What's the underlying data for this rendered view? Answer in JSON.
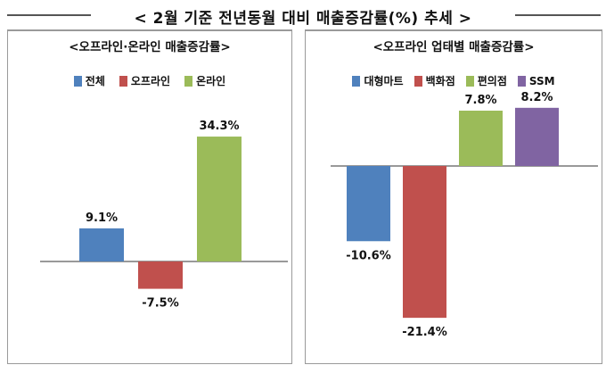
{
  "title": "< 2월 기준 전년동월 대비 매출증감률(%) 추세 >",
  "colors": {
    "blue": "#4f81bd",
    "red": "#c0504d",
    "green": "#9bbb59",
    "purple": "#8064a2"
  },
  "chart_data": [
    {
      "type": "bar",
      "title": "<오프라인·온라인 매출증감률>",
      "categories": [
        "전체",
        "오프라인",
        "온라인"
      ],
      "values": [
        9.1,
        -7.5,
        34.3
      ],
      "labels": [
        "9.1%",
        "-7.5%",
        "34.3%"
      ],
      "colors": [
        "#4f81bd",
        "#c0504d",
        "#9bbb59"
      ],
      "legend": [
        "전체",
        "오프라인",
        "온라인"
      ],
      "legend_position": "top",
      "unit": "%",
      "grid": false
    },
    {
      "type": "bar",
      "title": "<오프라인 업태별 매출증감률>",
      "categories": [
        "대형마트",
        "백화점",
        "편의점",
        "SSM"
      ],
      "values": [
        -10.6,
        -21.4,
        7.8,
        8.2
      ],
      "labels": [
        "-10.6%",
        "-21.4%",
        "7.8%",
        "8.2%"
      ],
      "colors": [
        "#4f81bd",
        "#c0504d",
        "#9bbb59",
        "#8064a2"
      ],
      "legend": [
        "대형마트",
        "백화점",
        "편의점",
        "SSM"
      ],
      "legend_position": "top",
      "unit": "%",
      "grid": false
    }
  ]
}
